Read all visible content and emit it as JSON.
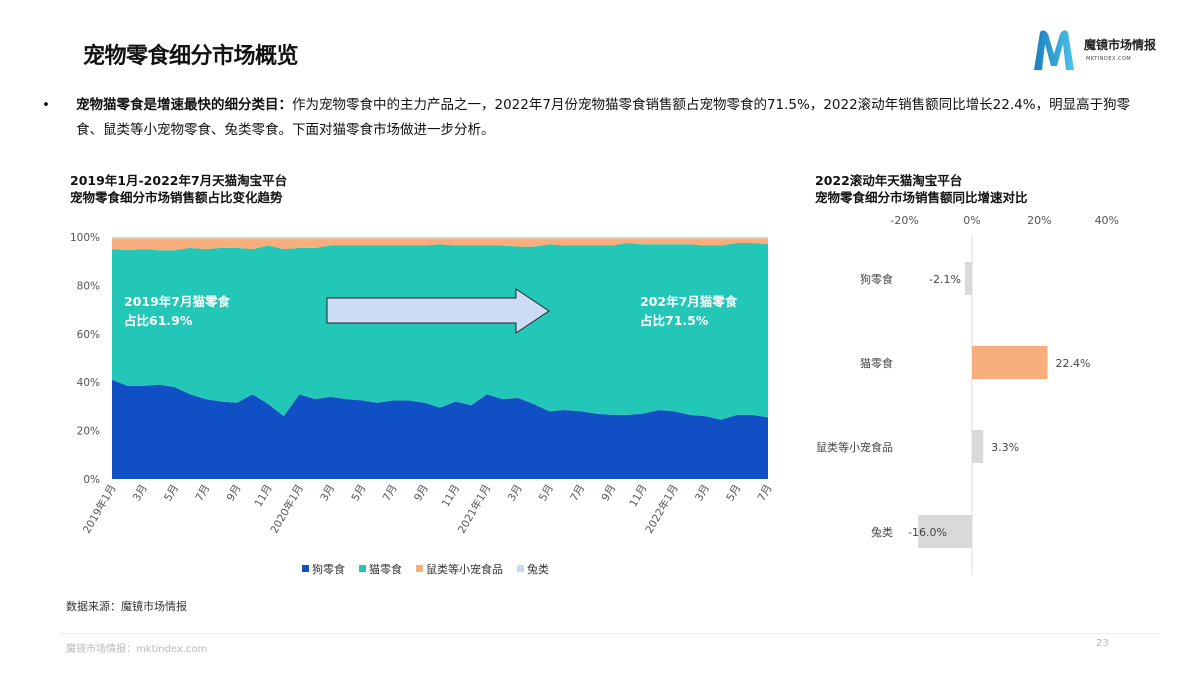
{
  "header": {
    "title": "宠物零食细分市场概览",
    "logo_name": "魔镜市场情报",
    "logo_sub": "MKTINDEX.COM"
  },
  "bullet": {
    "marker": "•",
    "bold": "宠物猫零食是增速最快的细分类目：",
    "text": "作为宠物零食中的主力产品之一，2022年7月份宠物猫零食销售额占宠物零食的71.5%，2022滚动年销售额同比增长22.4%，明显高于狗零食、鼠类等小宠物零食、兔类零食。下面对猫零食市场做进一步分析。"
  },
  "chart_data": [
    {
      "type": "area",
      "stacked": true,
      "title_lines": [
        "2019年1月-2022年7月天猫淘宝平台",
        "宠物零食细分市场销售额占比变化趋势"
      ],
      "ylim": [
        0,
        100
      ],
      "yticks": [
        "0%",
        "20%",
        "40%",
        "60%",
        "80%",
        "100%"
      ],
      "xtick_labels": [
        "2019年1月",
        "3月",
        "5月",
        "7月",
        "9月",
        "11月",
        "2020年1月",
        "3月",
        "5月",
        "7月",
        "9月",
        "11月",
        "2021年1月",
        "3月",
        "5月",
        "7月",
        "9月",
        "11月",
        "2022年1月",
        "3月",
        "5月",
        "7月"
      ],
      "grid": false,
      "legend_position": "bottom",
      "series": [
        {
          "name": "狗零食",
          "color": "#1150c4",
          "values": [
            41,
            38.5,
            38.5,
            39,
            38,
            35,
            33,
            32,
            31.5,
            35,
            31,
            26,
            35,
            33,
            34,
            33,
            32.5,
            31.5,
            32.5,
            32.5,
            31.5,
            29.5,
            32,
            30.5,
            35,
            33,
            33.5,
            31,
            28,
            28.5,
            28,
            27,
            26.5,
            26.5,
            27,
            28.5,
            28,
            26.5,
            26,
            24.5,
            26.5,
            26.5,
            25.5
          ]
        },
        {
          "name": "猫零食",
          "color": "#22c7b8",
          "values": [
            54,
            56,
            56.5,
            55.5,
            56.5,
            60.5,
            62,
            63.5,
            64,
            60,
            65.5,
            69,
            60.5,
            62.5,
            62.5,
            63.5,
            64,
            65,
            64,
            64,
            65,
            67.5,
            64.5,
            66,
            61.5,
            63.5,
            62.5,
            65,
            69,
            68,
            68.5,
            69.5,
            70,
            71,
            70,
            68.5,
            69,
            70.5,
            70.5,
            72,
            71,
            71,
            71.5
          ]
        },
        {
          "name": "鼠类等小宠食品",
          "color": "#f8ae7c",
          "values": [
            4.5,
            5,
            4.5,
            5,
            5,
            4,
            4.5,
            4,
            4,
            4.5,
            3,
            4.5,
            4,
            4,
            3,
            3,
            3,
            3,
            3,
            3,
            3,
            2.5,
            3,
            3,
            3,
            3,
            3.5,
            3.5,
            2.5,
            3,
            3,
            3,
            3,
            2,
            2.5,
            2.5,
            2.5,
            2.5,
            3,
            3,
            2,
            2,
            2.5
          ]
        },
        {
          "name": "兔类",
          "color": "#c8dbf4",
          "values": [
            0.5,
            0.5,
            0.5,
            0.5,
            0.5,
            0.5,
            0.5,
            0.5,
            0.5,
            0.5,
            0.5,
            0.5,
            0.5,
            0.5,
            0.5,
            0.5,
            0.5,
            0.5,
            0.5,
            0.5,
            0.5,
            0.5,
            0.5,
            0.5,
            0.5,
            0.5,
            0.5,
            0.5,
            0.5,
            0.5,
            0.5,
            0.5,
            0.5,
            0.5,
            0.5,
            0.5,
            0.5,
            0.5,
            0.5,
            0.5,
            0.5,
            0.5,
            0.5
          ]
        }
      ],
      "annotations": [
        {
          "line1": "2019年7月猫零食",
          "line2": "占比61.9%"
        },
        {
          "line1": "202年7月猫零食",
          "line2": "占比71.5%"
        }
      ]
    },
    {
      "type": "bar",
      "orientation": "horizontal",
      "title_lines": [
        "2022滚动年天猫淘宝平台",
        "宠物零食细分市场销售额同比增速对比"
      ],
      "categories": [
        "狗零食",
        "猫零食",
        "鼠类等小宠食品",
        "兔类"
      ],
      "values": [
        -2.1,
        22.4,
        3.3,
        -16.0
      ],
      "labels": [
        "-2.1%",
        "22.4%",
        "3.3%",
        "-16.0%"
      ],
      "colors": [
        "#d9d9d9",
        "#f8ae7c",
        "#d9d9d9",
        "#d9d9d9"
      ],
      "xlim": [
        -20,
        40
      ],
      "xticks": [
        "-20%",
        "0%",
        "20%",
        "40%"
      ],
      "grid": false
    }
  ],
  "footer": {
    "source": "数据来源：魔镜市场情报",
    "site": "魔镜市场情报：mktindex.com",
    "page": "23"
  }
}
